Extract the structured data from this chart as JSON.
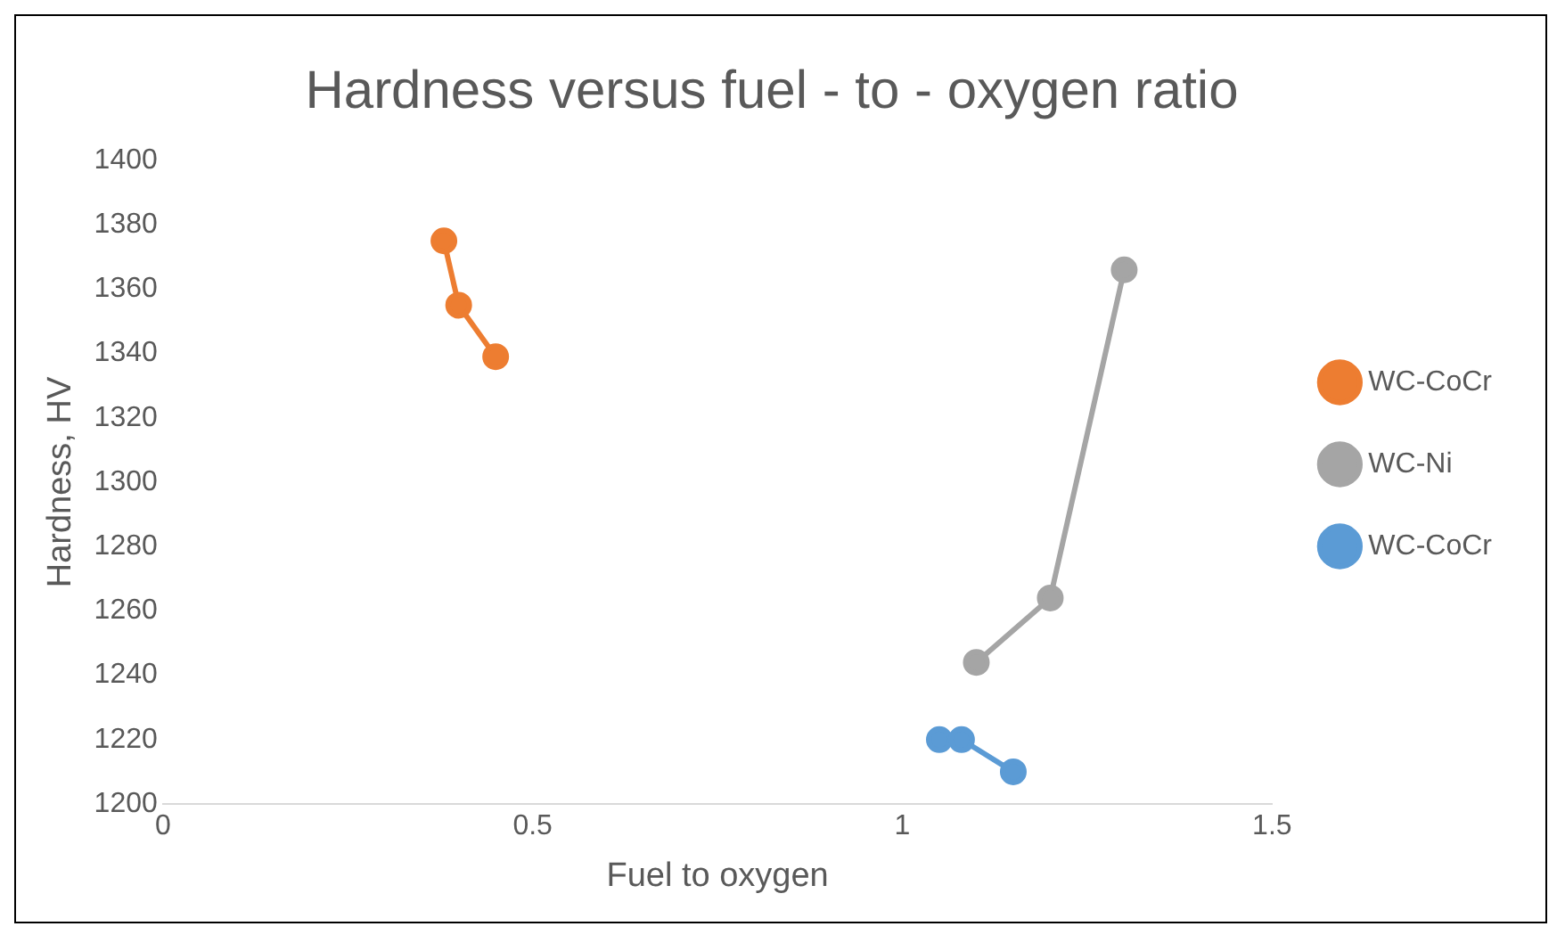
{
  "chart_data": {
    "type": "line",
    "title": "Hardness versus fuel - to - oxygen ratio",
    "xlabel": "Fuel to oxygen",
    "ylabel": "Hardness, HV",
    "series": [
      {
        "name": "WC-CoCr",
        "color": "#ed7d31",
        "x": [
          0.38,
          0.4,
          0.45
        ],
        "values": [
          1375,
          1355,
          1339
        ]
      },
      {
        "name": "WC-Ni",
        "color": "#a5a5a5",
        "x": [
          1.1,
          1.2,
          1.3
        ],
        "values": [
          1244,
          1264,
          1366
        ]
      },
      {
        "name": "WC-CoCr",
        "color": "#5b9bd5",
        "x": [
          1.05,
          1.08,
          1.15
        ],
        "values": [
          1220,
          1220,
          1210
        ]
      }
    ],
    "xlim": [
      0,
      1.5
    ],
    "xticks": [
      0,
      0.5,
      1,
      1.5
    ],
    "ylim": [
      1200,
      1400
    ],
    "yticks": [
      1200,
      1220,
      1240,
      1260,
      1280,
      1300,
      1320,
      1340,
      1360,
      1380,
      1400
    ],
    "grid": false,
    "legend": "right",
    "marker": "circle",
    "line_style": "solid"
  }
}
